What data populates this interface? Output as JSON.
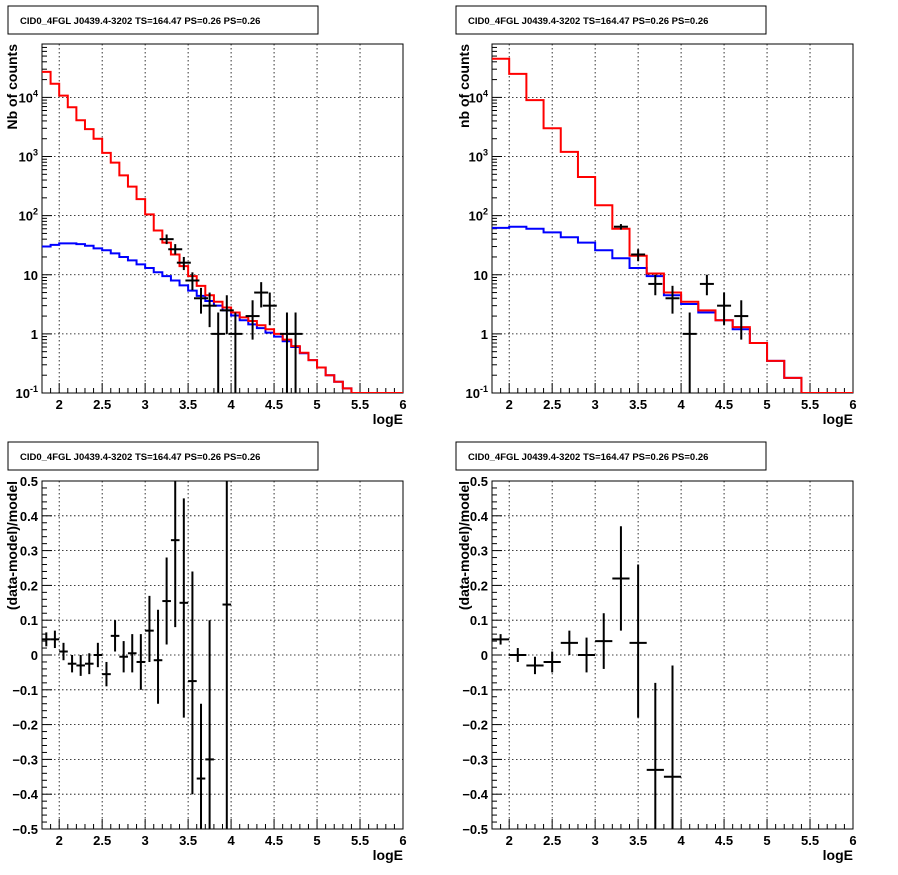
{
  "chart_data": [
    {
      "type": "line",
      "title": "CID0_4FGL J0439.4-3202 TS=164.47 PS=0.26 PS=0.26",
      "xlabel": "logE",
      "ylabel": "Nb of counts",
      "xlim": [
        1.8,
        6.0
      ],
      "ylim": [
        0.1,
        80000
      ],
      "yscale": "log",
      "grid": true,
      "x_ticks": [
        "2",
        "2.5",
        "3",
        "3.5",
        "4",
        "4.5",
        "5",
        "5.5",
        "6"
      ],
      "y_ticks": [
        "10^{-1}",
        "1",
        "10",
        "10^{2}",
        "10^{3}",
        "10^{4}"
      ],
      "series": [
        {
          "name": "",
          "color": "#ff0000",
          "kind": "step",
          "edges": [
            1.8,
            1.9,
            2.0,
            2.1,
            2.2,
            2.3,
            2.4,
            2.5,
            2.6,
            2.7,
            2.8,
            2.9,
            3.0,
            3.1,
            3.2,
            3.3,
            3.4,
            3.5,
            3.6,
            3.7,
            3.8,
            3.9,
            4.0,
            4.1,
            4.2,
            4.3,
            4.4,
            4.5,
            4.6,
            4.7,
            4.8,
            4.9,
            5.0,
            5.1,
            5.2,
            5.3,
            5.4,
            5.5,
            5.6,
            5.7,
            5.8,
            5.9,
            6.0
          ],
          "values": [
            27000,
            17000,
            10700,
            6800,
            4100,
            2900,
            2000,
            1150,
            790,
            480,
            310,
            190,
            105,
            56,
            35,
            22,
            14,
            9.5,
            6.5,
            4.5,
            3.5,
            2.8,
            2.3,
            1.9,
            1.65,
            1.4,
            1.2,
            1.0,
            0.8,
            0.62,
            0.48,
            0.36,
            0.27,
            0.2,
            0.155,
            0.12,
            0.1,
            0.1,
            0.1,
            0.1,
            0.1,
            0.1
          ]
        },
        {
          "name": "",
          "color": "#0000ff",
          "kind": "step",
          "edges": [
            1.8,
            1.9,
            2.0,
            2.1,
            2.2,
            2.3,
            2.4,
            2.5,
            2.6,
            2.7,
            2.8,
            2.9,
            3.0,
            3.1,
            3.2,
            3.3,
            3.4,
            3.5,
            3.6,
            3.7,
            3.8,
            3.9,
            4.0,
            4.1,
            4.2,
            4.3,
            4.4,
            4.5,
            4.6,
            4.7,
            4.8,
            4.9,
            5.0,
            5.1,
            5.2,
            5.3,
            5.4,
            5.5,
            5.6,
            5.7,
            5.8,
            5.9,
            6.0
          ],
          "values": [
            30,
            32,
            34,
            34,
            33,
            31,
            28,
            26,
            23,
            20,
            17.5,
            15,
            13,
            11,
            9.5,
            8,
            6.6,
            5.4,
            4.4,
            3.6,
            3.0,
            2.5,
            2.05,
            1.7,
            1.45,
            1.25,
            1.05,
            0.9,
            0.75,
            0.6,
            0.47,
            0.36,
            0.27,
            0.2,
            0.155,
            0.12,
            0.1,
            0.1,
            0.1,
            0.1,
            0.1,
            0.1
          ]
        },
        {
          "name": "",
          "color": "#000000",
          "kind": "points",
          "points": [
            {
              "x": 3.25,
              "y": 40,
              "ylo": 33,
              "yhi": 48
            },
            {
              "x": 3.35,
              "y": 27,
              "ylo": 22,
              "yhi": 33
            },
            {
              "x": 3.45,
              "y": 16,
              "ylo": 12,
              "yhi": 20
            },
            {
              "x": 3.55,
              "y": 8,
              "ylo": 5.5,
              "yhi": 11
            },
            {
              "x": 3.65,
              "y": 4,
              "ylo": 2.2,
              "yhi": 6
            },
            {
              "x": 3.75,
              "y": 3,
              "ylo": 1.3,
              "yhi": 5
            },
            {
              "x": 3.85,
              "y": 1,
              "ylo": 0.1,
              "yhi": 2.3
            },
            {
              "x": 3.95,
              "y": 2.5,
              "ylo": 1,
              "yhi": 4.5
            },
            {
              "x": 4.05,
              "y": 1,
              "ylo": 0.1,
              "yhi": 2.3
            },
            {
              "x": 4.25,
              "y": 2,
              "ylo": 0.8,
              "yhi": 3.7
            },
            {
              "x": 4.35,
              "y": 5,
              "ylo": 2.8,
              "yhi": 7.5
            },
            {
              "x": 4.45,
              "y": 3,
              "ylo": 1.4,
              "yhi": 5
            },
            {
              "x": 4.65,
              "y": 1,
              "ylo": 0.1,
              "yhi": 2.3
            },
            {
              "x": 4.75,
              "y": 1,
              "ylo": 0.1,
              "yhi": 2.3
            }
          ]
        }
      ]
    },
    {
      "type": "line",
      "title": "CID0_4FGL J0439.4-3202 TS=164.47 PS=0.26 PS=0.26",
      "xlabel": "logE",
      "ylabel": "nb of counts",
      "xlim": [
        1.8,
        6.0
      ],
      "ylim": [
        0.1,
        80000
      ],
      "yscale": "log",
      "grid": true,
      "x_ticks": [
        "2",
        "2.5",
        "3",
        "3.5",
        "4",
        "4.5",
        "5",
        "5.5",
        "6"
      ],
      "y_ticks": [
        "10^{-1}",
        "1",
        "10",
        "10^{2}",
        "10^{3}",
        "10^{4}"
      ],
      "series": [
        {
          "name": "",
          "color": "#ff0000",
          "kind": "step",
          "edges": [
            1.8,
            2.0,
            2.2,
            2.4,
            2.6,
            2.8,
            3.0,
            3.2,
            3.4,
            3.6,
            3.8,
            4.0,
            4.2,
            4.4,
            4.6,
            4.8,
            5.0,
            5.2,
            5.4,
            5.6,
            5.8,
            6.0
          ],
          "values": [
            45000,
            25000,
            9000,
            3000,
            1200,
            450,
            150,
            60,
            21,
            10.5,
            5,
            3.5,
            2.5,
            1.7,
            1.3,
            0.7,
            0.35,
            0.18,
            0.1,
            0.1,
            0.1
          ],
          "overlay_from": 3.8
        },
        {
          "name": "",
          "color": "#0000ff",
          "kind": "step",
          "edges": [
            1.8,
            2.0,
            2.2,
            2.4,
            2.6,
            2.8,
            3.0,
            3.2,
            3.4,
            3.6,
            3.8,
            4.0,
            4.2,
            4.4,
            4.6,
            4.8,
            5.0,
            5.2,
            5.4,
            5.6,
            5.8,
            6.0
          ],
          "values": [
            62,
            65,
            60,
            52,
            43,
            35,
            26,
            19,
            13,
            9.5,
            4.5,
            3.2,
            2.3,
            1.7,
            1.2,
            0.7,
            0.35,
            0.18,
            0.1,
            0.1,
            0.1
          ]
        },
        {
          "name": "",
          "color": "#000000",
          "kind": "points",
          "points": [
            {
              "x": 3.3,
              "y": 65,
              "ylo": 58,
              "yhi": 72
            },
            {
              "x": 3.5,
              "y": 22,
              "ylo": 17,
              "yhi": 27
            },
            {
              "x": 3.7,
              "y": 7,
              "ylo": 4.5,
              "yhi": 10
            },
            {
              "x": 3.9,
              "y": 4,
              "ylo": 2.2,
              "yhi": 6.5
            },
            {
              "x": 4.1,
              "y": 1,
              "ylo": 0.1,
              "yhi": 2.3
            },
            {
              "x": 4.3,
              "y": 7,
              "ylo": 4.5,
              "yhi": 10
            },
            {
              "x": 4.5,
              "y": 3,
              "ylo": 1.4,
              "yhi": 5
            },
            {
              "x": 4.7,
              "y": 2,
              "ylo": 0.8,
              "yhi": 3.7
            }
          ]
        }
      ]
    },
    {
      "type": "scatter",
      "title": "CID0_4FGL J0439.4-3202 TS=164.47 PS=0.26 PS=0.26",
      "xlabel": "logE",
      "ylabel": "(data-model)/model",
      "xlim": [
        1.8,
        6.0
      ],
      "ylim": [
        -0.5,
        0.5
      ],
      "grid": true,
      "x_ticks": [
        "2",
        "2.5",
        "3",
        "3.5",
        "4",
        "4.5",
        "5",
        "5.5",
        "6"
      ],
      "y_ticks": [
        "−0.5",
        "−0.4",
        "−0.3",
        "−0.2",
        "−0.1",
        "0",
        "0.1",
        "0.2",
        "0.3",
        "0.4",
        "0.5"
      ],
      "xerr": 0.05,
      "points": [
        {
          "x": 1.85,
          "y": 0.045,
          "ylo": 0.025,
          "yhi": 0.065
        },
        {
          "x": 1.95,
          "y": 0.045,
          "ylo": 0.02,
          "yhi": 0.07
        },
        {
          "x": 2.05,
          "y": 0.01,
          "ylo": -0.015,
          "yhi": 0.035
        },
        {
          "x": 2.15,
          "y": -0.025,
          "ylo": -0.05,
          "yhi": 0.0
        },
        {
          "x": 2.25,
          "y": -0.03,
          "ylo": -0.06,
          "yhi": 0.0
        },
        {
          "x": 2.35,
          "y": -0.025,
          "ylo": -0.055,
          "yhi": 0.005
        },
        {
          "x": 2.45,
          "y": 0.0,
          "ylo": -0.035,
          "yhi": 0.035
        },
        {
          "x": 2.55,
          "y": -0.055,
          "ylo": -0.09,
          "yhi": -0.02
        },
        {
          "x": 2.65,
          "y": 0.055,
          "ylo": 0.01,
          "yhi": 0.1
        },
        {
          "x": 2.75,
          "y": -0.005,
          "ylo": -0.05,
          "yhi": 0.04
        },
        {
          "x": 2.85,
          "y": 0.005,
          "ylo": -0.05,
          "yhi": 0.06
        },
        {
          "x": 2.95,
          "y": -0.02,
          "ylo": -0.1,
          "yhi": 0.06
        },
        {
          "x": 3.05,
          "y": 0.07,
          "ylo": -0.02,
          "yhi": 0.17
        },
        {
          "x": 3.15,
          "y": -0.015,
          "ylo": -0.14,
          "yhi": 0.13
        },
        {
          "x": 3.25,
          "y": 0.155,
          "ylo": 0.03,
          "yhi": 0.28
        },
        {
          "x": 3.35,
          "y": 0.33,
          "ylo": 0.08,
          "yhi": 0.5
        },
        {
          "x": 3.45,
          "y": 0.15,
          "ylo": -0.18,
          "yhi": 0.45
        },
        {
          "x": 3.55,
          "y": -0.075,
          "ylo": -0.4,
          "yhi": 0.24
        },
        {
          "x": 3.65,
          "y": -0.355,
          "ylo": -0.5,
          "yhi": -0.14
        },
        {
          "x": 3.75,
          "y": -0.3,
          "ylo": -0.5,
          "yhi": 0.1
        },
        {
          "x": 3.95,
          "y": 0.145,
          "ylo": -0.5,
          "yhi": 0.5
        }
      ]
    },
    {
      "type": "scatter",
      "title": "CID0_4FGL J0439.4-3202 TS=164.47 PS=0.26 PS=0.26",
      "xlabel": "logE",
      "ylabel": "(data-model)/model",
      "xlim": [
        1.8,
        6.0
      ],
      "ylim": [
        -0.5,
        0.5
      ],
      "grid": true,
      "x_ticks": [
        "2",
        "2.5",
        "3",
        "3.5",
        "4",
        "4.5",
        "5",
        "5.5",
        "6"
      ],
      "y_ticks": [
        "−0.5",
        "−0.4",
        "−0.3",
        "−0.2",
        "−0.1",
        "0",
        "0.1",
        "0.2",
        "0.3",
        "0.4",
        "0.5"
      ],
      "xerr": 0.1,
      "points": [
        {
          "x": 1.9,
          "y": 0.045,
          "ylo": 0.03,
          "yhi": 0.06
        },
        {
          "x": 2.1,
          "y": 0.0,
          "ylo": -0.02,
          "yhi": 0.02
        },
        {
          "x": 2.3,
          "y": -0.03,
          "ylo": -0.055,
          "yhi": -0.005
        },
        {
          "x": 2.5,
          "y": -0.02,
          "ylo": -0.05,
          "yhi": 0.01
        },
        {
          "x": 2.7,
          "y": 0.035,
          "ylo": 0.0,
          "yhi": 0.07
        },
        {
          "x": 2.9,
          "y": 0.0,
          "ylo": -0.05,
          "yhi": 0.05
        },
        {
          "x": 3.1,
          "y": 0.04,
          "ylo": -0.04,
          "yhi": 0.12
        },
        {
          "x": 3.3,
          "y": 0.22,
          "ylo": 0.07,
          "yhi": 0.37
        },
        {
          "x": 3.5,
          "y": 0.035,
          "ylo": -0.18,
          "yhi": 0.26
        },
        {
          "x": 3.7,
          "y": -0.33,
          "ylo": -0.5,
          "yhi": -0.08
        },
        {
          "x": 3.9,
          "y": -0.35,
          "ylo": -0.5,
          "yhi": -0.03
        }
      ]
    }
  ]
}
